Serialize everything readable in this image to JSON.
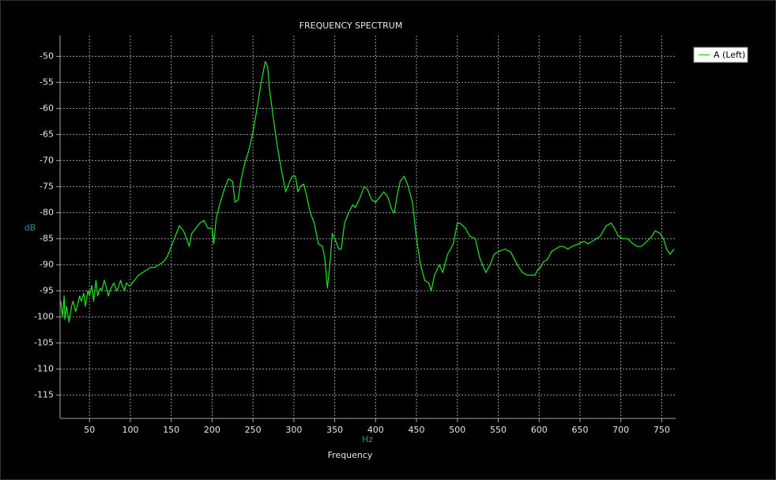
{
  "chart_data": {
    "type": "line",
    "title": "FREQUENCY SPECTRUM",
    "y_label": "dB",
    "x_unit": "Hz",
    "x_label": "Frequency",
    "xlim": [
      14,
      767
    ],
    "ylim": [
      -119.5,
      -46
    ],
    "xticks": [
      50,
      100,
      150,
      200,
      250,
      300,
      350,
      400,
      450,
      500,
      550,
      600,
      650,
      700,
      750
    ],
    "yticks": [
      -50,
      -55,
      -60,
      -65,
      -70,
      -75,
      -80,
      -85,
      -90,
      -95,
      -100,
      -105,
      -110,
      -115
    ],
    "grid": true,
    "legend": "right",
    "x": [
      15,
      17,
      19,
      20,
      22,
      25,
      28,
      30,
      33,
      35,
      38,
      40,
      43,
      45,
      48,
      50,
      53,
      55,
      58,
      60,
      63,
      65,
      68,
      70,
      73,
      75,
      78,
      80,
      83,
      85,
      88,
      90,
      93,
      95,
      98,
      100,
      105,
      110,
      115,
      120,
      125,
      130,
      135,
      140,
      145,
      150,
      155,
      160,
      165,
      170,
      172,
      175,
      180,
      185,
      190,
      195,
      200,
      202,
      205,
      210,
      215,
      220,
      225,
      228,
      232,
      235,
      240,
      245,
      250,
      255,
      260,
      265,
      268,
      270,
      275,
      280,
      285,
      290,
      295,
      298,
      302,
      305,
      308,
      312,
      316,
      320,
      325,
      330,
      335,
      338,
      341,
      344,
      347,
      350,
      355,
      358,
      362,
      367,
      372,
      375,
      380,
      386,
      390,
      395,
      400,
      405,
      410,
      415,
      420,
      423,
      426,
      430,
      435,
      440,
      445,
      450,
      455,
      460,
      465,
      468,
      472,
      478,
      482,
      488,
      495,
      500,
      503,
      510,
      515,
      522,
      527,
      532,
      535,
      540,
      545,
      550,
      558,
      565,
      570,
      575,
      580,
      585,
      590,
      595,
      598,
      602,
      605,
      610,
      615,
      620,
      625,
      630,
      635,
      640,
      648,
      655,
      660,
      665,
      670,
      675,
      682,
      688,
      692,
      697,
      702,
      708,
      715,
      720,
      725,
      732,
      738,
      742,
      748,
      752,
      756,
      760,
      765
    ],
    "series": [
      {
        "name": "A (Left)",
        "color": "#22e522",
        "values": [
          -97,
          -100,
          -96,
          -100.5,
          -98,
          -101,
          -98,
          -97,
          -99,
          -98,
          -96,
          -97,
          -95.5,
          -98,
          -95,
          -96,
          -94,
          -97,
          -93,
          -96,
          -94.5,
          -95,
          -93,
          -94,
          -96,
          -95,
          -94,
          -93.5,
          -95,
          -94.5,
          -93,
          -94,
          -95,
          -93.5,
          -94,
          -94,
          -93,
          -92,
          -91.5,
          -91,
          -90.5,
          -90.5,
          -90,
          -89.5,
          -88.5,
          -86.5,
          -84.5,
          -82.5,
          -83.5,
          -85.5,
          -86.5,
          -84,
          -83,
          -82,
          -81.5,
          -83,
          -83,
          -86,
          -81,
          -78,
          -75.5,
          -73.5,
          -74,
          -78,
          -77.5,
          -74,
          -70.5,
          -68,
          -64.5,
          -60,
          -55,
          -51,
          -52,
          -56,
          -62,
          -67.5,
          -72,
          -76,
          -74,
          -73,
          -73,
          -76,
          -75,
          -74.5,
          -77,
          -80,
          -82,
          -86,
          -86.5,
          -89,
          -94.5,
          -90,
          -84,
          -85,
          -87,
          -87,
          -82,
          -80,
          -78.5,
          -79,
          -77.5,
          -75,
          -75.5,
          -77.5,
          -78,
          -77,
          -76,
          -77,
          -79.5,
          -80,
          -77,
          -74,
          -73,
          -75,
          -78,
          -85,
          -90,
          -93,
          -93.5,
          -95,
          -92,
          -90,
          -91.5,
          -88,
          -86,
          -82,
          -82,
          -83,
          -84.5,
          -85,
          -88.5,
          -90.5,
          -91.5,
          -90,
          -88,
          -87.5,
          -87,
          -87.5,
          -89,
          -90.5,
          -91.5,
          -92,
          -92,
          -92,
          -91,
          -90.5,
          -89.5,
          -89,
          -87.5,
          -87,
          -86.5,
          -86.5,
          -87,
          -86.5,
          -86,
          -85.5,
          -86,
          -85.5,
          -85,
          -84.5,
          -82.5,
          -82,
          -83,
          -84.5,
          -85,
          -85,
          -86,
          -86.5,
          -86.5,
          -85.5,
          -84.5,
          -83.5,
          -84,
          -85,
          -87,
          -88,
          -87
        ]
      }
    ]
  }
}
